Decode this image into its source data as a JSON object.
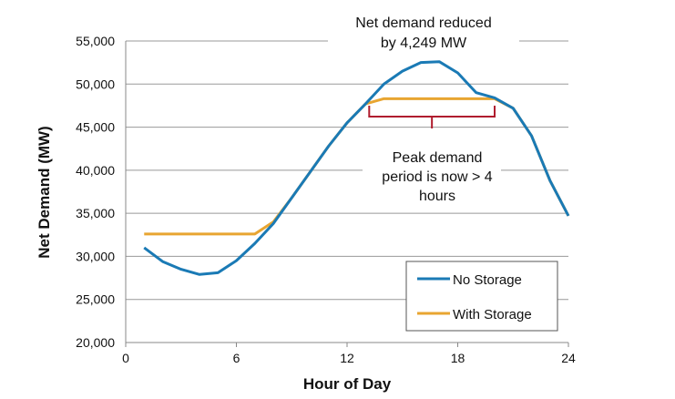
{
  "chart_data": {
    "type": "line",
    "title": "",
    "xlabel": "Hour of Day",
    "ylabel": "Net Demand (MW)",
    "xlim": [
      0,
      24
    ],
    "ylim": [
      20000,
      55000
    ],
    "xticks": [
      0,
      6,
      12,
      18,
      24
    ],
    "yticks": [
      20000,
      25000,
      30000,
      35000,
      40000,
      45000,
      50000,
      55000
    ],
    "ytick_labels": [
      "20,000",
      "25,000",
      "30,000",
      "35,000",
      "40,000",
      "45,000",
      "50,000",
      "55,000"
    ],
    "grid": "horizontal",
    "legend_position": "bottom-right",
    "x": [
      1,
      2,
      3,
      4,
      5,
      6,
      7,
      8,
      9,
      10,
      11,
      12,
      13,
      14,
      15,
      16,
      17,
      18,
      19,
      20,
      21,
      22,
      23,
      24
    ],
    "series": [
      {
        "name": "No Storage",
        "color": "#1a7ab5",
        "values": [
          31000,
          29400,
          28500,
          27900,
          28100,
          29500,
          31500,
          33800,
          36800,
          39800,
          42800,
          45500,
          47700,
          50000,
          51500,
          52500,
          52600,
          51300,
          49000,
          48400,
          47200,
          44000,
          38800,
          34700
        ]
      },
      {
        "name": "With Storage",
        "color": "#e8a531",
        "values": [
          32600,
          32600,
          32600,
          32600,
          32600,
          32600,
          32600,
          34000,
          36800,
          39800,
          42800,
          45500,
          47700,
          48300,
          48300,
          48300,
          48300,
          48300,
          48300,
          48300,
          47200,
          44000,
          38800,
          34700
        ]
      }
    ],
    "annotations": [
      {
        "lines": [
          "Net demand reduced",
          "by 4,249 MW"
        ]
      },
      {
        "lines": [
          "Peak demand",
          "period is now > 4",
          "hours"
        ],
        "bracket_color": "#b01c2e",
        "bracket_x": [
          13.2,
          20
        ]
      }
    ]
  }
}
